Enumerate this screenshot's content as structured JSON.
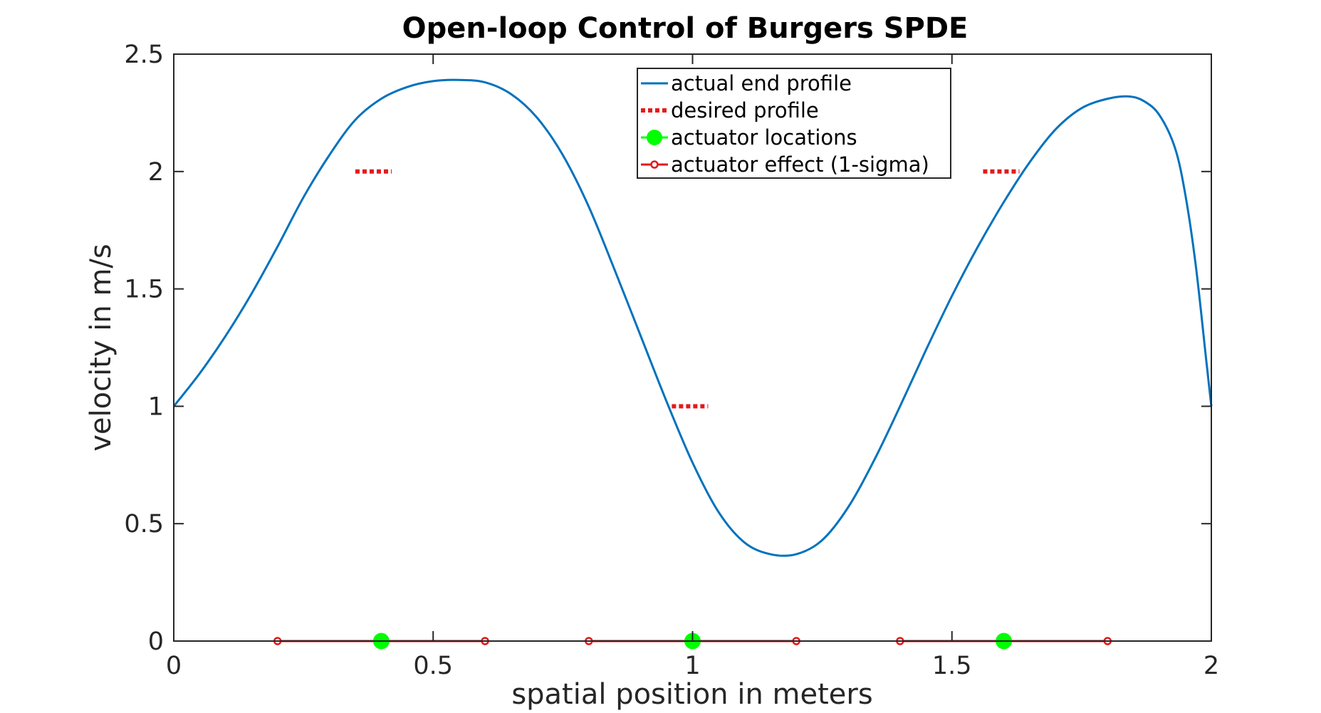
{
  "chart_data": {
    "type": "line",
    "title": "Open-loop Control of Burgers SPDE",
    "xlabel": "spatial position in meters",
    "ylabel": "velocity in m/s",
    "xlim": [
      0,
      2
    ],
    "ylim": [
      0,
      2.5
    ],
    "xticks": [
      "0",
      "0.5",
      "1",
      "1.5",
      "2"
    ],
    "yticks": [
      "0",
      "0.5",
      "1",
      "1.5",
      "2",
      "2.5"
    ],
    "grid": false,
    "legend_position": "top-center",
    "series": [
      {
        "name": "actual end profile",
        "color": "#0072bd",
        "style": "solid",
        "x": [
          0,
          0.05,
          0.1,
          0.15,
          0.2,
          0.25,
          0.3,
          0.35,
          0.4,
          0.45,
          0.5,
          0.55,
          0.6,
          0.65,
          0.7,
          0.75,
          0.8,
          0.85,
          0.9,
          0.95,
          1.0,
          1.05,
          1.1,
          1.15,
          1.2,
          1.25,
          1.3,
          1.35,
          1.4,
          1.45,
          1.5,
          1.55,
          1.6,
          1.65,
          1.7,
          1.75,
          1.8,
          1.84,
          1.87,
          1.9,
          1.93,
          1.95,
          1.97,
          1.99,
          2.0
        ],
        "y": [
          1.0,
          1.14,
          1.3,
          1.48,
          1.68,
          1.89,
          2.07,
          2.22,
          2.31,
          2.36,
          2.385,
          2.39,
          2.38,
          2.33,
          2.23,
          2.07,
          1.85,
          1.58,
          1.3,
          1.02,
          0.76,
          0.55,
          0.42,
          0.37,
          0.37,
          0.43,
          0.57,
          0.77,
          1.0,
          1.24,
          1.47,
          1.68,
          1.87,
          2.04,
          2.18,
          2.27,
          2.31,
          2.32,
          2.3,
          2.24,
          2.1,
          1.9,
          1.6,
          1.2,
          1.0
        ]
      },
      {
        "name": "desired profile",
        "color": "#e31a1c",
        "style": "dotted",
        "segments": [
          {
            "x": [
              0.35,
              0.42
            ],
            "y": [
              2.0,
              2.0
            ]
          },
          {
            "x": [
              0.96,
              1.03
            ],
            "y": [
              1.0,
              1.0
            ]
          },
          {
            "x": [
              1.56,
              1.63
            ],
            "y": [
              2.0,
              2.0
            ]
          }
        ]
      },
      {
        "name": "actuator locations",
        "color": "#00ff00",
        "style": "markers",
        "x": [
          0.4,
          1.0,
          1.6
        ],
        "y": [
          0,
          0,
          0
        ]
      },
      {
        "name": "actuator effect (1-sigma)",
        "color": "#e31a1c",
        "style": "line-markers",
        "segments": [
          {
            "x": [
              0.2,
              0.6
            ],
            "y": [
              0,
              0
            ]
          },
          {
            "x": [
              0.8,
              1.2
            ],
            "y": [
              0,
              0
            ]
          },
          {
            "x": [
              1.4,
              1.8
            ],
            "y": [
              0,
              0
            ]
          }
        ]
      }
    ]
  }
}
